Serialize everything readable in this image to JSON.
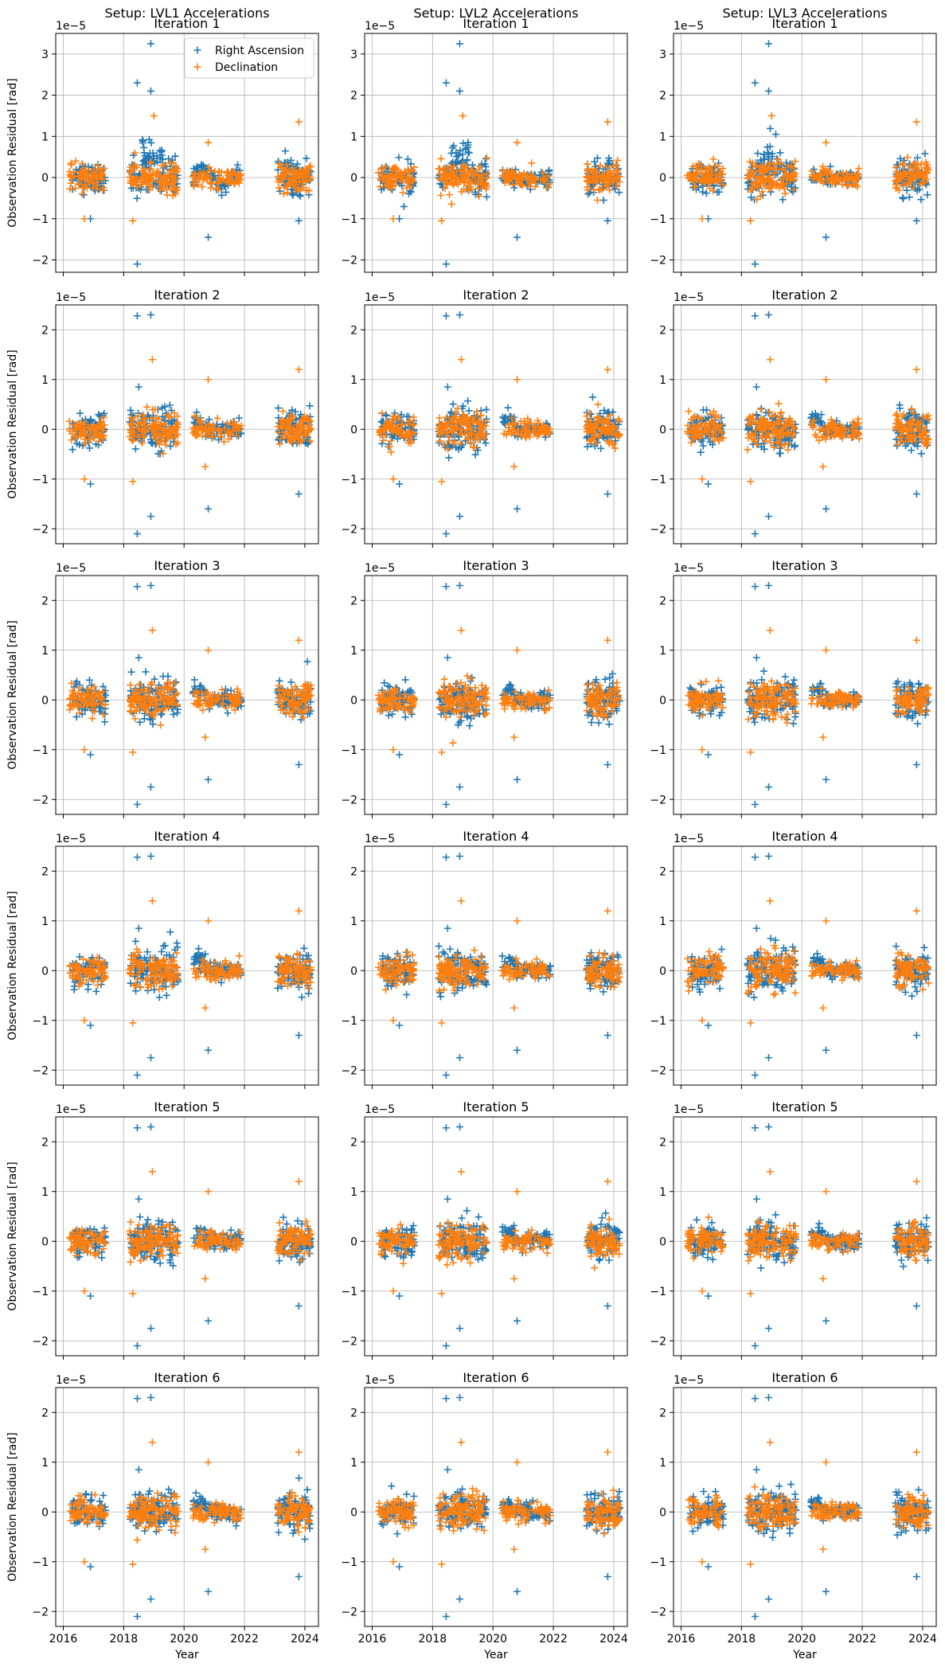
{
  "chart_data": {
    "type": "scatter",
    "grid": true,
    "legend": {
      "placement": "top-right",
      "in_panel": [
        0,
        0
      ]
    },
    "series_colors": {
      "Right Ascension": "#1f77b4",
      "Declination": "#ff7f0e"
    },
    "marker": "plus",
    "xlabel": "Year",
    "ylabel": "Observation Residual [rad]",
    "y_offset_text": "1e−5",
    "x_ticks": [
      2016,
      2018,
      2020,
      2022,
      2024
    ],
    "y_ticks": [
      -2,
      -1,
      0,
      1,
      2,
      3
    ],
    "columns": [
      {
        "title": "Setup: LVL1 Accelerations"
      },
      {
        "title": "Setup: LVL2 Accelerations"
      },
      {
        "title": "Setup: LVL3 Accelerations"
      }
    ],
    "rows": [
      {
        "title": "Iteration 1",
        "ylim": [
          -2.3,
          3.5
        ]
      },
      {
        "title": "Iteration 2",
        "ylim": [
          -2.3,
          2.5
        ]
      },
      {
        "title": "Iteration 3",
        "ylim": [
          -2.3,
          2.5
        ]
      },
      {
        "title": "Iteration 4",
        "ylim": [
          -2.3,
          2.5
        ]
      },
      {
        "title": "Iteration 5",
        "ylim": [
          -2.3,
          2.5
        ]
      },
      {
        "title": "Iteration 6",
        "ylim": [
          -2.3,
          2.5
        ]
      }
    ],
    "xlim": [
      2015.75,
      2024.45
    ],
    "series": [
      {
        "name": "Right Ascension",
        "clusters": [
          {
            "x_range": [
              2016.3,
              2017.4
            ],
            "spread": 0.35,
            "count": 70
          },
          {
            "x_range": [
              2018.2,
              2019.8
            ],
            "spread": 0.45,
            "count": 110
          },
          {
            "x_range": [
              2020.3,
              2021.9
            ],
            "spread": 0.2,
            "count": 80
          },
          {
            "x_range": [
              2023.1,
              2024.2
            ],
            "spread": 0.4,
            "count": 80
          }
        ],
        "outliers": [
          {
            "x": 2018.45,
            "y": -2.1
          },
          {
            "x": 2018.45,
            "y": 2.28
          },
          {
            "x": 2018.9,
            "y": 2.3
          },
          {
            "x": 2018.9,
            "y": -1.75
          },
          {
            "x": 2020.8,
            "y": -1.6
          },
          {
            "x": 2018.5,
            "y": 0.85
          },
          {
            "x": 2023.8,
            "y": -1.3
          },
          {
            "x": 2016.9,
            "y": -1.1
          }
        ],
        "iteration1_outliers": [
          {
            "x": 2018.45,
            "y": -2.1
          },
          {
            "x": 2018.45,
            "y": 2.3
          },
          {
            "x": 2018.9,
            "y": 3.25
          },
          {
            "x": 2018.9,
            "y": 2.1
          },
          {
            "x": 2020.8,
            "y": -1.45
          },
          {
            "x": 2023.8,
            "y": -1.05
          },
          {
            "x": 2016.9,
            "y": -1.0
          }
        ]
      },
      {
        "name": "Declination",
        "clusters": [
          {
            "x_range": [
              2016.2,
              2017.4
            ],
            "spread": 0.3,
            "count": 70
          },
          {
            "x_range": [
              2018.2,
              2019.8
            ],
            "spread": 0.4,
            "count": 110
          },
          {
            "x_range": [
              2020.3,
              2021.9
            ],
            "spread": 0.2,
            "count": 70
          },
          {
            "x_range": [
              2023.1,
              2024.2
            ],
            "spread": 0.35,
            "count": 80
          }
        ],
        "outliers": [
          {
            "x": 2018.95,
            "y": 1.4
          },
          {
            "x": 2020.8,
            "y": 1.0
          },
          {
            "x": 2023.8,
            "y": 1.2
          },
          {
            "x": 2016.7,
            "y": -1.0
          },
          {
            "x": 2018.3,
            "y": -1.05
          },
          {
            "x": 2020.7,
            "y": -0.75
          }
        ],
        "iteration1_outliers": [
          {
            "x": 2023.8,
            "y": 1.35
          },
          {
            "x": 2018.3,
            "y": -1.05
          },
          {
            "x": 2016.7,
            "y": -1.0
          },
          {
            "x": 2019.0,
            "y": 1.5
          },
          {
            "x": 2020.8,
            "y": 0.85
          }
        ]
      }
    ]
  }
}
